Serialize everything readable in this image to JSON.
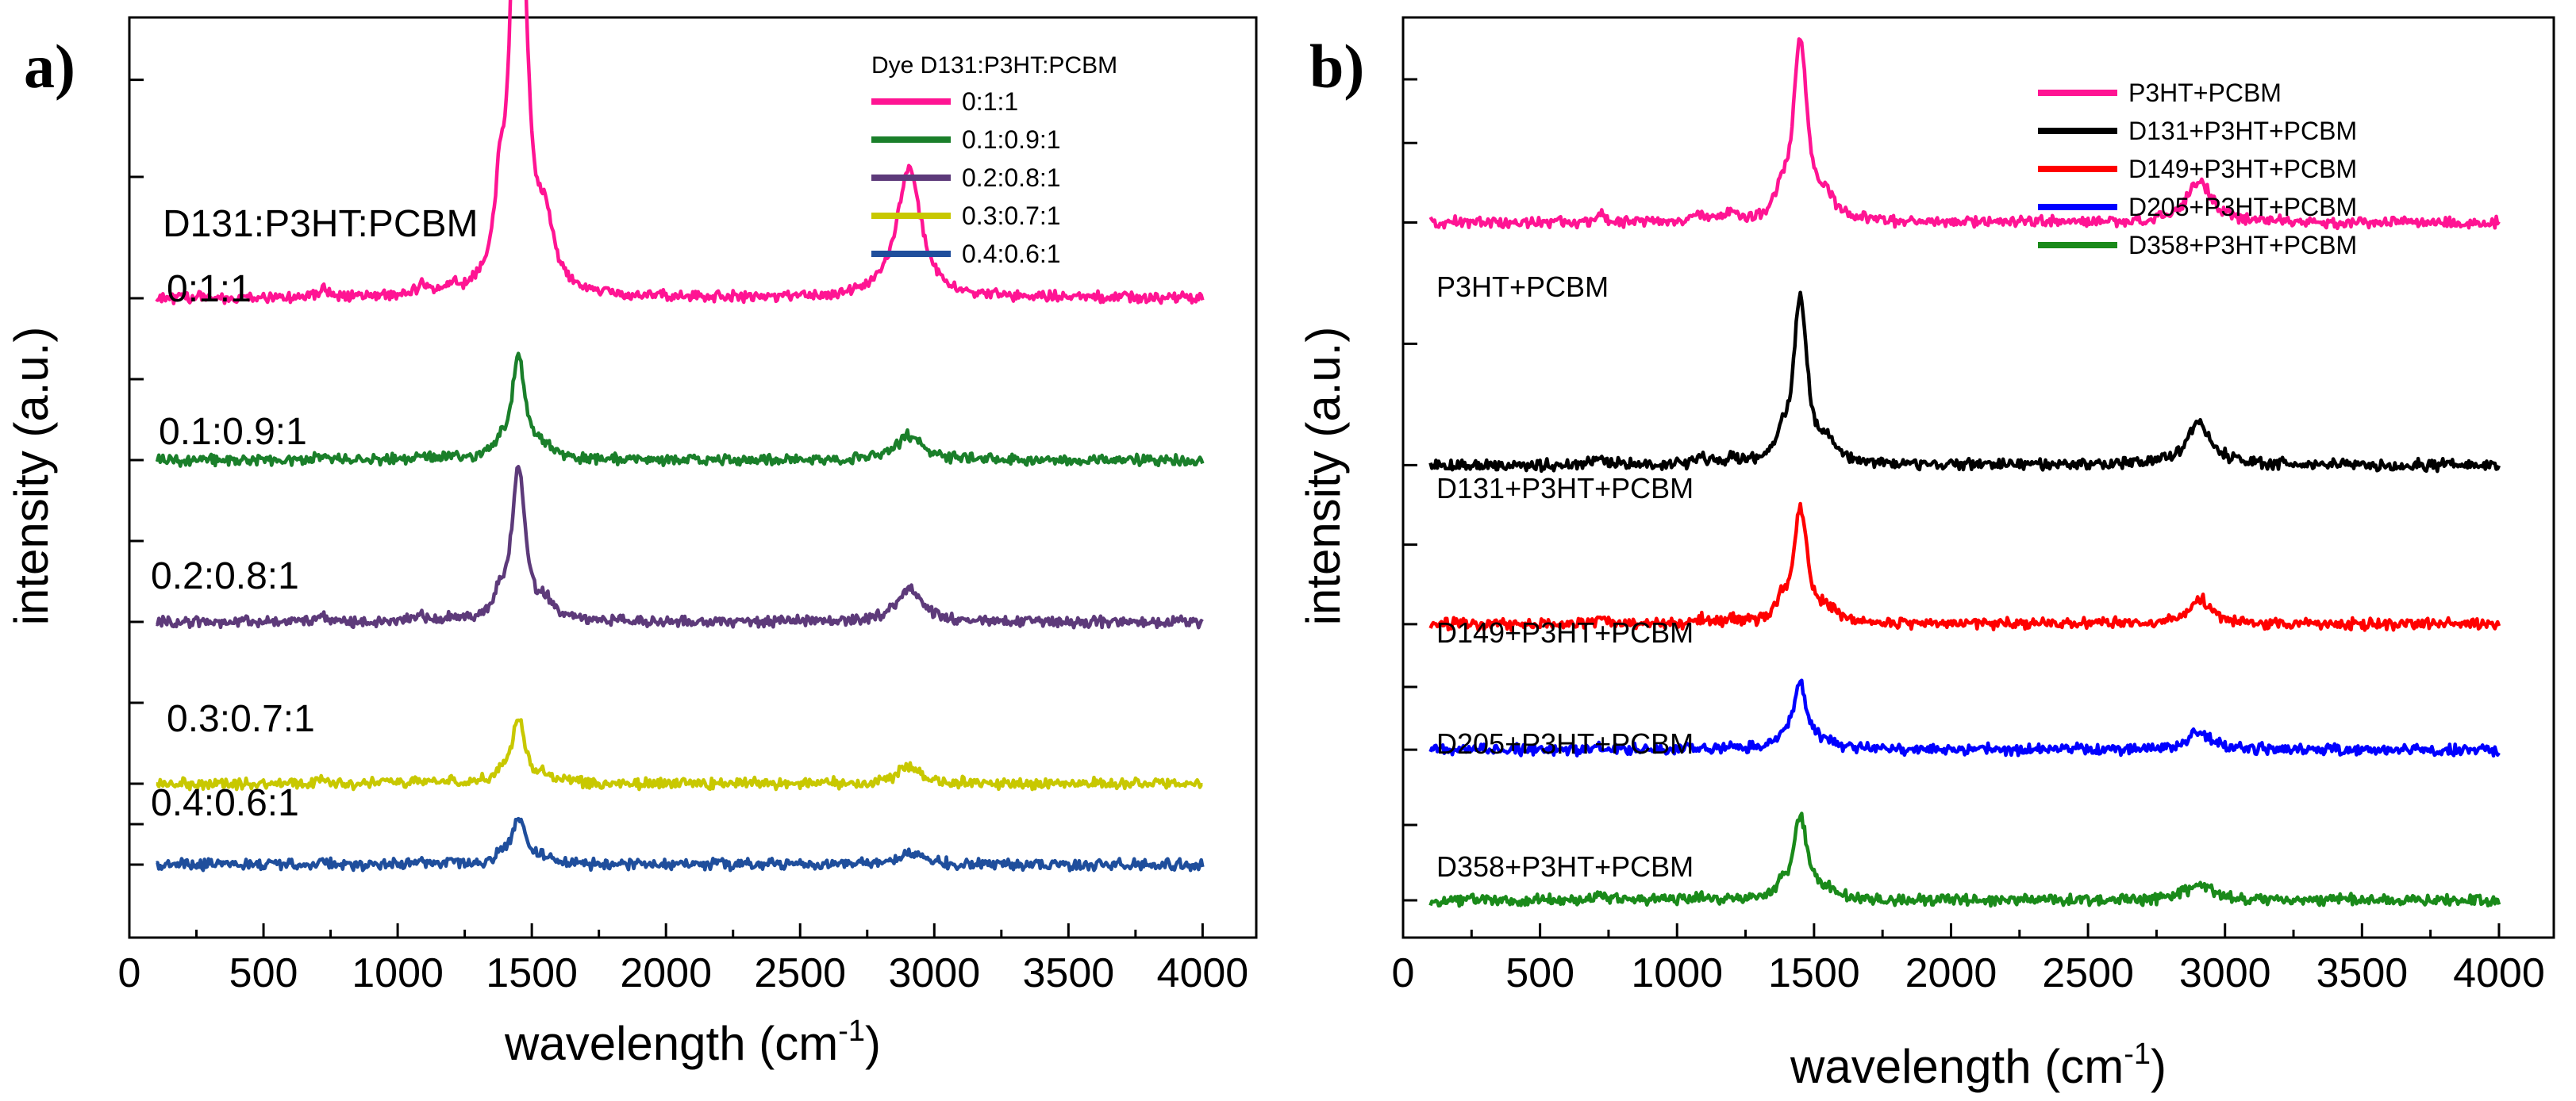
{
  "chart_data": [
    {
      "type": "line",
      "panel_label": "a)",
      "xlabel": "wavelength (cm",
      "xlabel_sup": "-1",
      "xlabel_suffix": ")",
      "ylabel": "intensity (a.u.)",
      "xlim": [
        0,
        4200
      ],
      "xticks": [
        0,
        500,
        1000,
        1500,
        2000,
        2500,
        3000,
        3500,
        4000
      ],
      "xtick_labels": [
        "0",
        "500",
        "1000",
        "1500",
        "2000",
        "2500",
        "3000",
        "3500",
        "4000"
      ],
      "annotation": "D131:P3HT:PCBM",
      "legend_title": "Dye D131:P3HT:PCBM",
      "legend_position": "top-right",
      "series": [
        {
          "name": " 0:1:1",
          "label": "0:1:1",
          "color": "#ff1493",
          "offset": 0.7,
          "peak_1450": 0.69,
          "peak_2900": 0.16,
          "small_peaks": 1.0
        },
        {
          "name": "0.1:0.9:1",
          "label": "0.1:0.9:1",
          "color": "#1a7f2a",
          "offset": 0.5,
          "peak_1450": 0.13,
          "peak_2900": 0.03,
          "small_peaks": 0.5
        },
        {
          "name": "0.2:0.8:1",
          "label": "0.2:0.8:1",
          "color": "#5d3a7a",
          "offset": 0.3,
          "peak_1450": 0.19,
          "peak_2900": 0.04,
          "small_peaks": 0.6
        },
        {
          "name": "0.3:0.7:1",
          "label": "0.3:0.7:1",
          "color": "#c8c800",
          "offset": 0.1,
          "peak_1450": 0.08,
          "peak_2900": 0.02,
          "small_peaks": 0.4
        },
        {
          "name": "0.4:0.6:1",
          "label": "0.4:0.6:1",
          "color": "#1f4e9c",
          "offset": 0.0,
          "peak_1450": 0.06,
          "peak_2900": 0.015,
          "small_peaks": 0.3
        }
      ]
    },
    {
      "type": "line",
      "panel_label": "b)",
      "xlabel": "wavelength (cm",
      "xlabel_sup": "-1",
      "xlabel_suffix": ")",
      "ylabel": "intensity (a.u.)",
      "xlim": [
        0,
        4200
      ],
      "xticks": [
        0,
        500,
        1000,
        1500,
        2000,
        2500,
        3000,
        3500,
        4000
      ],
      "xtick_labels": [
        "0",
        "500",
        "1000",
        "1500",
        "2000",
        "2500",
        "3000",
        "3500",
        "4000"
      ],
      "legend_position": "top-right",
      "series": [
        {
          "name": "P3HT+PCBM",
          "label": "P3HT+PCBM",
          "color": "#ff1493",
          "offset": 0.81,
          "peak_1450": 0.22,
          "peak_2900": 0.05,
          "small_peaks": 0.8
        },
        {
          "name": "D131+P3HT+PCBM",
          "label": "D131+P3HT+PCBM",
          "color": "#000000",
          "offset": 0.52,
          "peak_1450": 0.2,
          "peak_2900": 0.05,
          "small_peaks": 0.8
        },
        {
          "name": "D149+P3HT+PCBM",
          "label": "D149+P3HT+PCBM",
          "color": "#ff0000",
          "offset": 0.33,
          "peak_1450": 0.14,
          "peak_2900": 0.03,
          "small_peaks": 0.5
        },
        {
          "name": "D205+P3HT+PCBM",
          "label": "D205+P3HT+PCBM",
          "color": "#0000ff",
          "offset": 0.18,
          "peak_1450": 0.08,
          "peak_2900": 0.02,
          "small_peaks": 0.3
        },
        {
          "name": "D358+P3HT+PCBM",
          "label": "D358+P3HT+PCBM",
          "color": "#1a8a1a",
          "offset": 0.0,
          "peak_1450": 0.1,
          "peak_2900": 0.02,
          "small_peaks": 0.3
        }
      ]
    }
  ]
}
